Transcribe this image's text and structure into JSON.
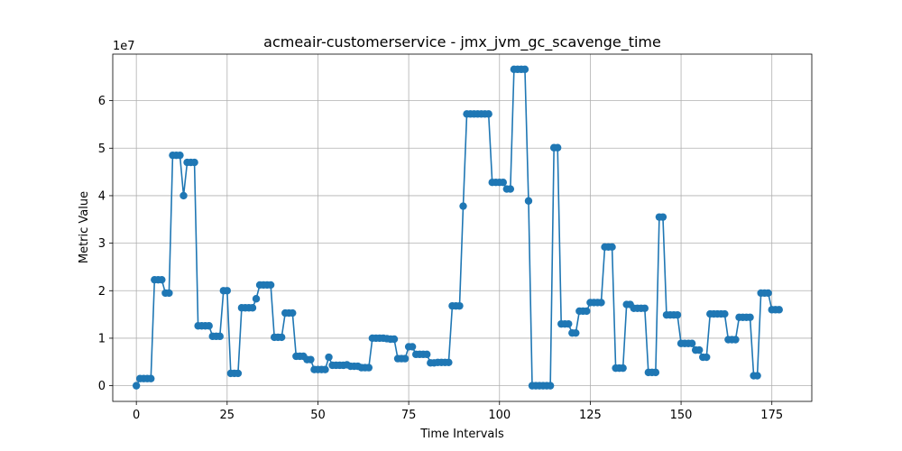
{
  "chart_data": {
    "type": "line",
    "title": "acmeair-customerservice - jmx_jvm_gc_scavenge_time",
    "xlabel": "Time Intervals",
    "ylabel": "Metric Value",
    "y_offset_label": "1e7",
    "xlim": [
      -6.5,
      186
    ],
    "ylim": [
      -3300000,
      69800000
    ],
    "y_scale": 10000000,
    "x_ticks": [
      0,
      25,
      50,
      75,
      100,
      125,
      150,
      175
    ],
    "y_ticks": [
      0,
      10000000,
      20000000,
      30000000,
      40000000,
      50000000,
      60000000
    ],
    "y_tick_labels": [
      "0",
      "1",
      "2",
      "3",
      "4",
      "5",
      "6"
    ],
    "grid": true,
    "marker": "circle",
    "color": "#1f77b4",
    "series": [
      {
        "x": [
          0,
          1,
          2,
          3,
          4,
          5,
          6,
          7,
          8,
          9,
          10,
          11,
          12,
          13,
          14,
          15,
          16,
          17,
          18,
          19,
          20,
          21,
          22,
          23,
          24,
          25,
          26,
          27,
          28,
          29,
          30,
          31,
          32,
          33,
          34,
          35,
          36,
          37,
          38,
          39,
          40,
          41,
          42,
          43,
          44,
          45,
          46,
          47,
          48,
          49,
          50,
          51,
          52,
          53,
          54,
          55,
          56,
          57,
          58,
          59,
          60,
          61,
          62,
          63,
          64,
          65,
          66,
          67,
          68,
          69,
          70,
          71,
          72,
          73,
          74,
          75,
          76,
          77,
          78,
          79,
          80,
          81,
          82,
          83,
          84,
          85,
          86,
          87,
          88,
          89,
          90,
          91,
          92,
          93,
          94,
          95,
          96,
          97,
          98,
          99,
          100,
          101,
          102,
          103,
          104,
          105,
          106,
          107,
          108,
          109,
          110,
          111,
          112,
          113,
          114,
          115,
          116,
          117,
          118,
          119,
          120,
          121,
          122,
          123,
          124,
          125,
          126,
          127,
          128,
          129,
          130,
          131,
          132,
          133,
          134,
          135,
          136,
          137,
          138,
          139,
          140,
          141,
          142,
          143,
          144,
          145,
          146,
          147,
          148,
          149,
          150,
          151,
          152,
          153,
          154,
          155,
          156,
          157,
          158,
          159,
          160,
          161,
          162,
          163,
          164,
          165,
          166,
          167,
          168,
          169,
          170,
          171,
          172,
          173,
          174,
          175,
          176,
          177
        ],
        "values": [
          0,
          1500000,
          1500000,
          1500000,
          1500000,
          22300000,
          22300000,
          22300000,
          19500000,
          19500000,
          48500000,
          48500000,
          48500000,
          40000000,
          47000000,
          47000000,
          47000000,
          12600000,
          12600000,
          12600000,
          12600000,
          10400000,
          10400000,
          10400000,
          20000000,
          20000000,
          2600000,
          2600000,
          2600000,
          16400000,
          16400000,
          16400000,
          16400000,
          18300000,
          21200000,
          21200000,
          21200000,
          21200000,
          10200000,
          10200000,
          10200000,
          15300000,
          15300000,
          15300000,
          6200000,
          6200000,
          6200000,
          5500000,
          5500000,
          3400000,
          3400000,
          3400000,
          3400000,
          6000000,
          4300000,
          4300000,
          4300000,
          4300000,
          4400000,
          4100000,
          4100000,
          4100000,
          3800000,
          3800000,
          3800000,
          10000000,
          10000000,
          10000000,
          10000000,
          9900000,
          9800000,
          9800000,
          5700000,
          5700000,
          5700000,
          8200000,
          8200000,
          6600000,
          6600000,
          6600000,
          6600000,
          4800000,
          4800000,
          4900000,
          4900000,
          4900000,
          4900000,
          16800000,
          16800000,
          16800000,
          37800000,
          57200000,
          57200000,
          57200000,
          57200000,
          57200000,
          57200000,
          57200000,
          42800000,
          42800000,
          42800000,
          42800000,
          41400000,
          41400000,
          66600000,
          66600000,
          66600000,
          66600000,
          38900000,
          0,
          0,
          0,
          0,
          0,
          0,
          50100000,
          50100000,
          13000000,
          13000000,
          13000000,
          11100000,
          11100000,
          15700000,
          15700000,
          15700000,
          17500000,
          17500000,
          17500000,
          17500000,
          29200000,
          29200000,
          29200000,
          3700000,
          3700000,
          3700000,
          17100000,
          17100000,
          16300000,
          16300000,
          16300000,
          16300000,
          2800000,
          2800000,
          2800000,
          35500000,
          35500000,
          14900000,
          14900000,
          14900000,
          14900000,
          8900000,
          8900000,
          8900000,
          8900000,
          7500000,
          7500000,
          6000000,
          6000000,
          15100000,
          15100000,
          15100000,
          15100000,
          15100000,
          9700000,
          9700000,
          9700000,
          14400000,
          14400000,
          14400000,
          14400000,
          2100000,
          2100000,
          19500000,
          19500000,
          19500000,
          16000000,
          16000000,
          16000000
        ]
      }
    ]
  }
}
